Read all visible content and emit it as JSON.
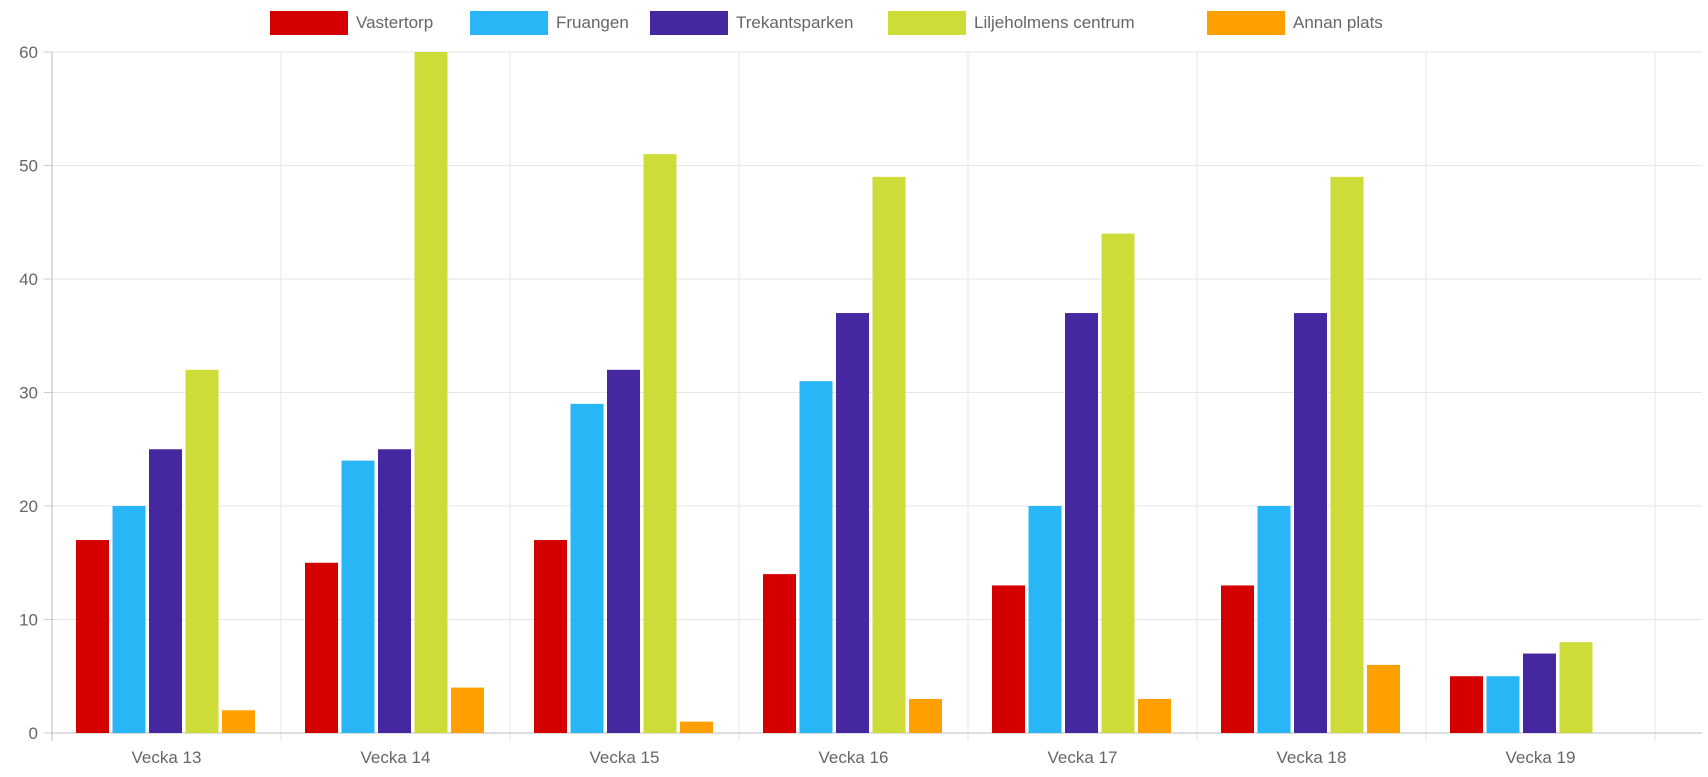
{
  "chart_data": {
    "type": "bar",
    "categories": [
      "Vecka 13",
      "Vecka 14",
      "Vecka 15",
      "Vecka 16",
      "Vecka 17",
      "Vecka 18",
      "Vecka 19"
    ],
    "series": [
      {
        "name": "Vastertorp",
        "color": "#d40000",
        "values": [
          17,
          15,
          17,
          14,
          13,
          13,
          5
        ]
      },
      {
        "name": "Fruangen",
        "color": "#29b6f6",
        "values": [
          20,
          24,
          29,
          31,
          20,
          20,
          5
        ]
      },
      {
        "name": "Trekantsparken",
        "color": "#4527a0",
        "values": [
          25,
          25,
          32,
          37,
          37,
          37,
          7
        ]
      },
      {
        "name": "Liljeholmens centrum",
        "color": "#cddc39",
        "values": [
          32,
          60,
          51,
          49,
          44,
          49,
          8
        ]
      },
      {
        "name": "Annan plats",
        "color": "#ffa000",
        "values": [
          2,
          4,
          1,
          3,
          3,
          6,
          0
        ]
      }
    ],
    "yticks": [
      0,
      10,
      20,
      30,
      40,
      50,
      60
    ],
    "ylim": [
      0,
      60
    ],
    "grid": true,
    "legend_position": "top"
  }
}
